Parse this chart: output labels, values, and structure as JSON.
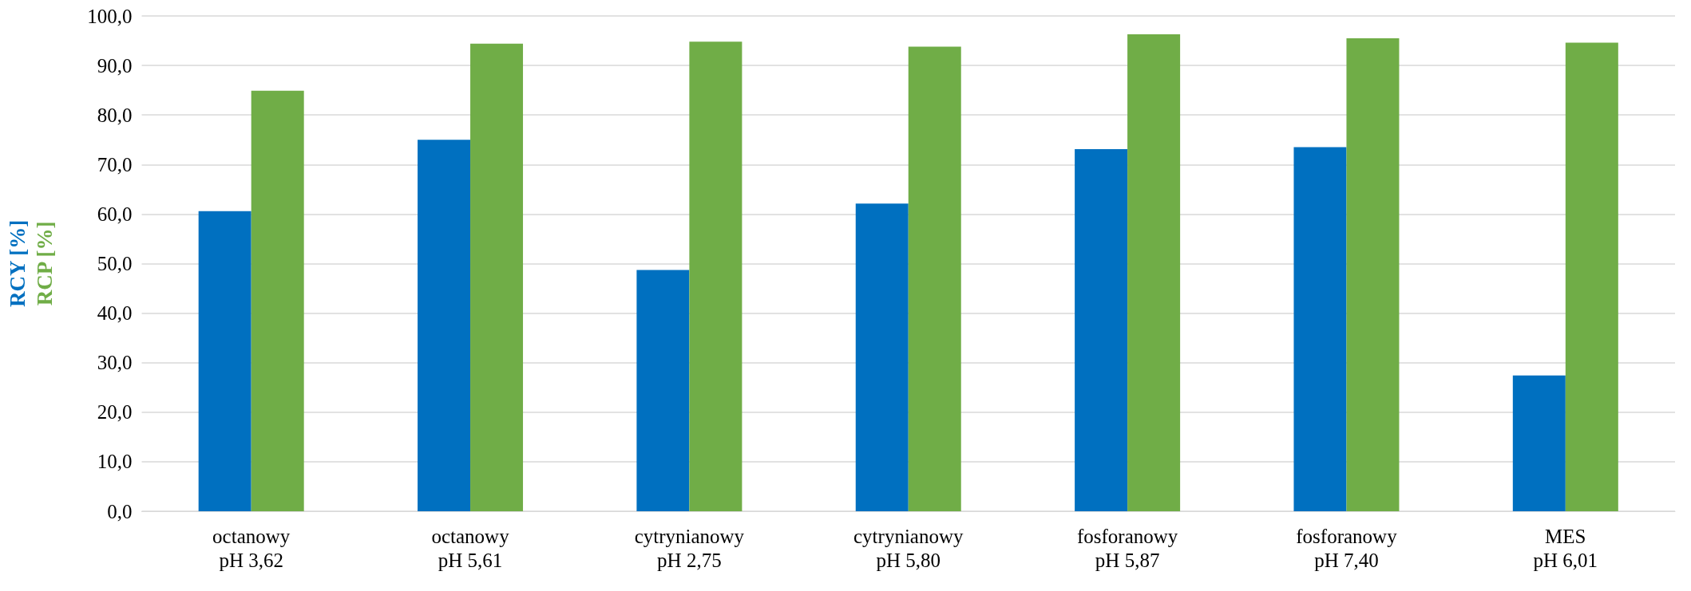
{
  "chart_data": {
    "type": "bar",
    "categories": [
      "octanowy\npH 3,62",
      "octanowy\npH 5,61",
      "cytrynianowy\npH 2,75",
      "cytrynianowy\npH 5,80",
      "fosforanowy\npH 5,87",
      "fosforanowy\npH 7,40",
      "MES\npH 6,01"
    ],
    "series": [
      {
        "name": "RCY [%]",
        "color": "#0070c0",
        "values": [
          60.6,
          75.0,
          48.7,
          62.1,
          73.1,
          73.5,
          27.4
        ]
      },
      {
        "name": "RCP [%]",
        "color": "#70ad47",
        "values": [
          84.9,
          94.4,
          94.8,
          93.8,
          96.3,
          95.5,
          94.6
        ]
      }
    ],
    "ylim": [
      0,
      100
    ],
    "yticks": [
      {
        "value": 0,
        "label": "0,0"
      },
      {
        "value": 10,
        "label": "10,0"
      },
      {
        "value": 20,
        "label": "20,0"
      },
      {
        "value": 30,
        "label": "30,0"
      },
      {
        "value": 40,
        "label": "40,0"
      },
      {
        "value": 50,
        "label": "50,0"
      },
      {
        "value": 60,
        "label": "60,0"
      },
      {
        "value": 70,
        "label": "70,0"
      },
      {
        "value": 80,
        "label": "80,0"
      },
      {
        "value": 90,
        "label": "90,0"
      },
      {
        "value": 100,
        "label": "100,0"
      }
    ],
    "grid": "y",
    "legend": false
  }
}
